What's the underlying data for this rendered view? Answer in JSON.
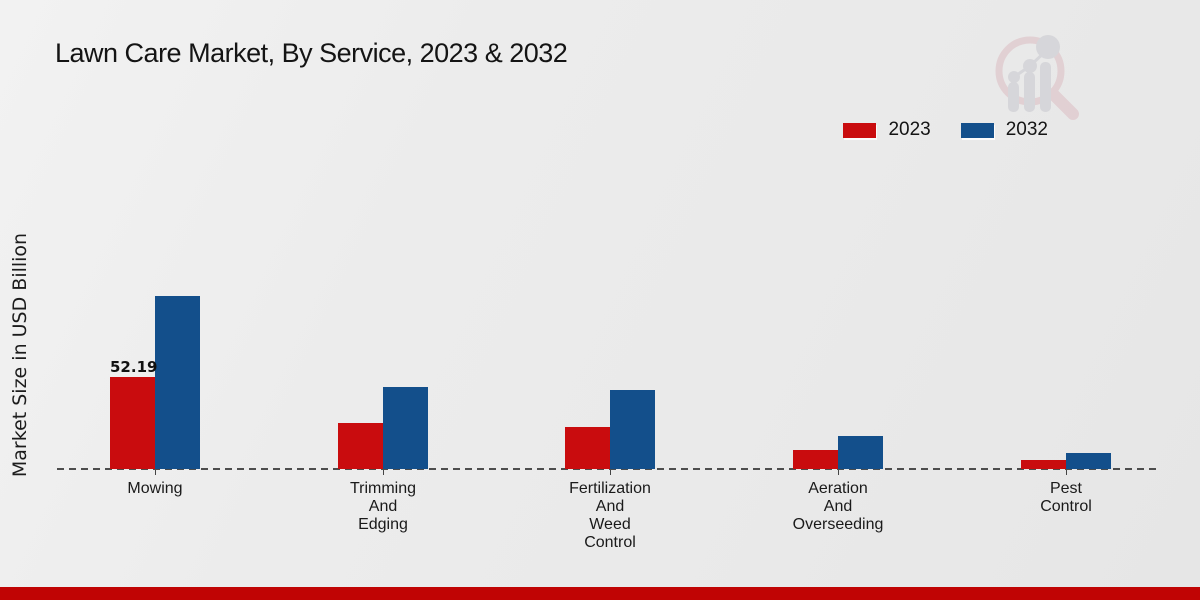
{
  "page": {
    "footer_band_color": "#c00404"
  },
  "brand": {
    "logo_icon": "magnifier-bar-chart-watermark",
    "logo_ring_color": "#dcbcc2",
    "logo_bars_color": "#c8c8ce"
  },
  "chart_data": {
    "type": "bar",
    "title": "Lawn Care Market, By Service, 2023 & 2032",
    "xlabel": "",
    "ylabel": "Market Size in USD Billion",
    "categories": [
      "Mowing",
      "Trimming\nAnd\nEdging",
      "Fertilization\nAnd\nWeed\nControl",
      "Aeration\nAnd\nOverseeding",
      "Pest\nControl"
    ],
    "series": [
      {
        "name": "2023",
        "color": "#c90c0e",
        "values": [
          52.19,
          25.9,
          23.7,
          10.6,
          5.3
        ]
      },
      {
        "name": "2032",
        "color": "#134f8b",
        "values": [
          98.1,
          46.7,
          44.8,
          18.5,
          9.1
        ]
      }
    ],
    "annotations": [
      {
        "text": "52.19",
        "category_index": 0,
        "series_index": 0
      }
    ],
    "legend_position": "top-right",
    "grid": false,
    "baseline_style": "dashed",
    "ylim": [
      0,
      110
    ]
  }
}
